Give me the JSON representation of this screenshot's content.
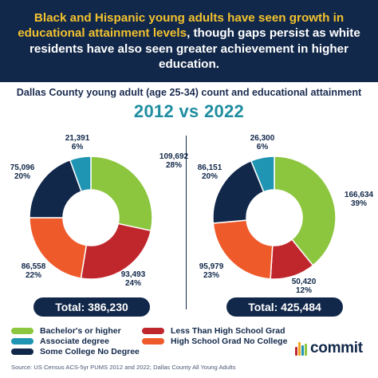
{
  "header": {
    "headline_highlight": "Black and Hispanic young adults have seen growth in educational attainment levels",
    "headline_rest": ", though gaps persist as white residents have also seen greater achievement in higher education."
  },
  "subtitle": "Dallas County young adult (age 25-34) count and educational attainment",
  "comparison_title": "2012 vs 2022",
  "colors": {
    "bachelors": "#8cc63f",
    "associate": "#1f95b3",
    "some_college": "#12284a",
    "less_than_hs": "#c0272d",
    "hs_grad": "#ef5a2b"
  },
  "chart_data": [
    {
      "type": "pie",
      "name": "2012",
      "categories": [
        "Bachelor's or higher",
        "Less Than High School Grad",
        "High School Grad No College",
        "Some College No Degree",
        "Associate degree"
      ],
      "values": [
        109692,
        93493,
        86558,
        75096,
        21391
      ],
      "value_labels": [
        "109,692",
        "93,493",
        "86,558",
        "75,096",
        "21,391"
      ],
      "percent_labels": [
        "28%",
        "24%",
        "22%",
        "20%",
        "6%"
      ],
      "color_keys": [
        "bachelors",
        "less_than_hs",
        "hs_grad",
        "some_college",
        "associate"
      ],
      "total_label": "Total: 386,230"
    },
    {
      "type": "pie",
      "name": "2022",
      "categories": [
        "Bachelor's or higher",
        "Less Than High School Grad",
        "High School Grad No College",
        "Some College No Degree",
        "Associate degree"
      ],
      "values": [
        166634,
        50420,
        95979,
        86151,
        26300
      ],
      "value_labels": [
        "166,634",
        "50,420",
        "95,979",
        "86,151",
        "26,300"
      ],
      "percent_labels": [
        "39%",
        "12%",
        "23%",
        "20%",
        "6%"
      ],
      "color_keys": [
        "bachelors",
        "less_than_hs",
        "hs_grad",
        "some_college",
        "associate"
      ],
      "total_label": "Total: 425,484"
    }
  ],
  "legend": [
    {
      "label": "Bachelor's or higher",
      "color_key": "bachelors"
    },
    {
      "label": "Associate degree",
      "color_key": "associate"
    },
    {
      "label": "Some College No Degree",
      "color_key": "some_college"
    },
    {
      "label": "Less Than High School Grad",
      "color_key": "less_than_hs"
    },
    {
      "label": "High School Grad No College",
      "color_key": "hs_grad"
    }
  ],
  "source": "Source: US Census ACS-5yr PUMS 2012 and 2022; Dallas County All Young Adults",
  "logo": {
    "text": "commit",
    "bar_colors": [
      "#c0272d",
      "#f2a51e",
      "#1f95b3",
      "#8cc63f"
    ]
  }
}
